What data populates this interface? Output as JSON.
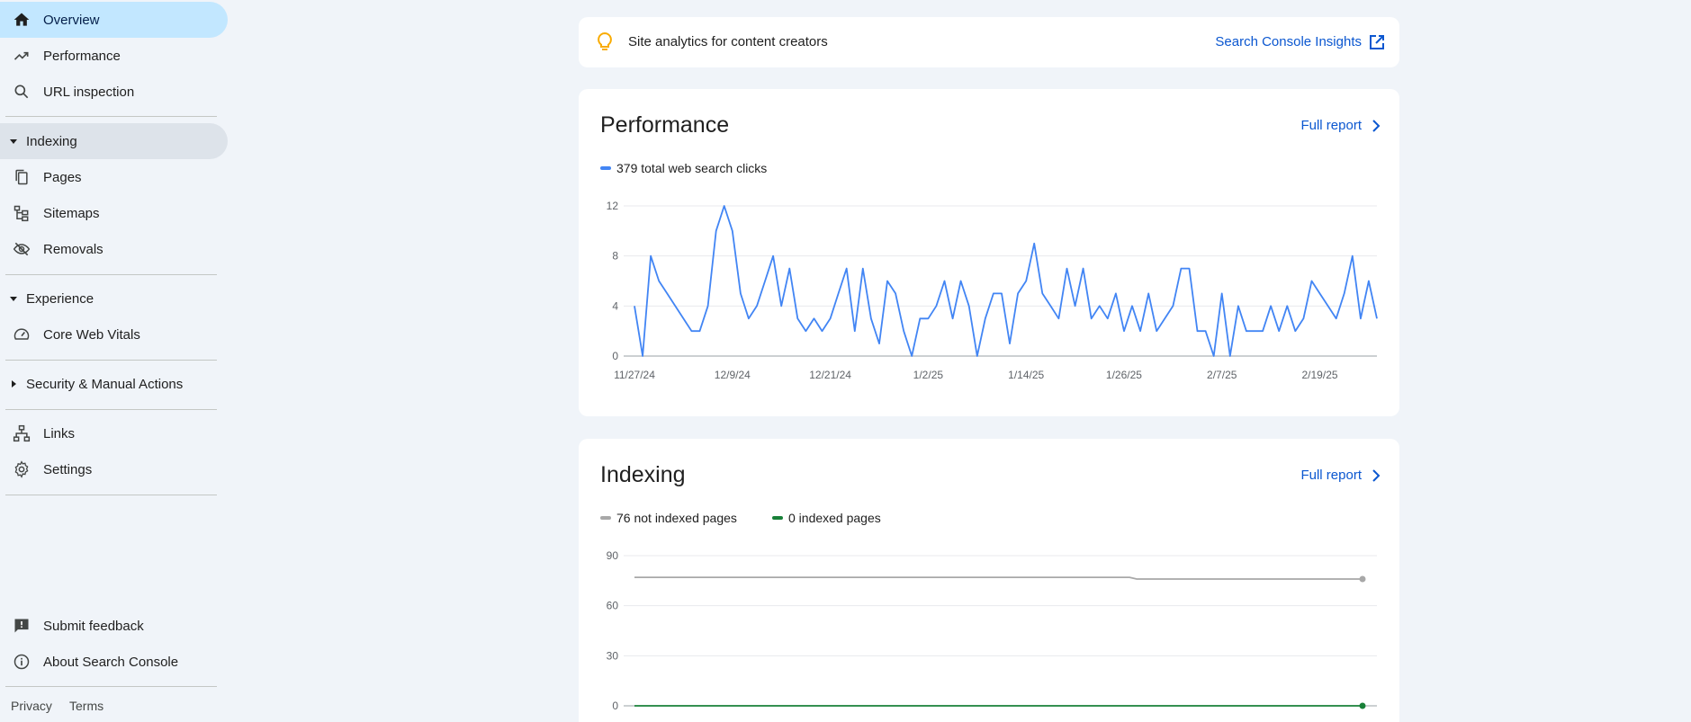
{
  "sidebar": {
    "overview": "Overview",
    "performance": "Performance",
    "url_inspection": "URL inspection",
    "indexing": "Indexing",
    "pages": "Pages",
    "sitemaps": "Sitemaps",
    "removals": "Removals",
    "experience": "Experience",
    "core_web_vitals": "Core Web Vitals",
    "security": "Security & Manual Actions",
    "links": "Links",
    "settings": "Settings",
    "submit_feedback": "Submit feedback",
    "about": "About Search Console",
    "privacy": "Privacy",
    "terms": "Terms"
  },
  "banner": {
    "text": "Site analytics for content creators",
    "link": "Search Console Insights"
  },
  "colors": {
    "accent_blue": "#0b57d0",
    "line_blue": "#4285f4",
    "line_gray": "#a8a8a8",
    "line_green": "#188038",
    "active_nav": "#c2e7ff"
  },
  "performance": {
    "title": "Performance",
    "full_report": "Full report",
    "legend": "379 total web search clicks"
  },
  "indexing": {
    "title": "Indexing",
    "full_report": "Full report",
    "legend_not_indexed": "76 not indexed pages",
    "legend_indexed": "0 indexed pages"
  },
  "chart_data": [
    {
      "type": "line",
      "title": "",
      "xlabel": "",
      "ylabel": "",
      "ylim": [
        0,
        12
      ],
      "yticks": [
        0,
        4,
        8,
        12
      ],
      "xtick_labels": [
        "11/27/24",
        "12/9/24",
        "12/21/24",
        "1/2/25",
        "1/14/25",
        "1/26/25",
        "2/7/25",
        "2/19/25"
      ],
      "grid": true,
      "series": [
        {
          "name": "379 total web search clicks",
          "color": "#4285f4",
          "values": [
            4,
            0,
            8,
            6,
            5,
            4,
            3,
            2,
            2,
            4,
            10,
            12,
            10,
            5,
            3,
            4,
            6,
            8,
            4,
            7,
            3,
            2,
            3,
            2,
            3,
            5,
            7,
            2,
            7,
            3,
            1,
            6,
            5,
            2,
            0,
            3,
            3,
            4,
            6,
            3,
            6,
            4,
            0,
            3,
            5,
            5,
            1,
            5,
            6,
            9,
            5,
            4,
            3,
            7,
            4,
            7,
            3,
            4,
            3,
            5,
            2,
            4,
            2,
            5,
            2,
            3,
            4,
            7,
            7,
            2,
            2,
            0,
            5,
            0,
            4,
            2,
            2,
            2,
            4,
            2,
            4,
            2,
            3,
            6,
            5,
            4,
            3,
            5,
            8,
            3,
            6,
            3
          ]
        }
      ]
    },
    {
      "type": "line",
      "title": "",
      "xlabel": "",
      "ylabel": "",
      "ylim": [
        0,
        90
      ],
      "yticks": [
        0,
        30,
        60,
        90
      ],
      "grid": true,
      "series": [
        {
          "name": "76 not indexed pages",
          "color": "#a8a8a8",
          "start": 77,
          "end": 76
        },
        {
          "name": "0 indexed pages",
          "color": "#188038",
          "start": 0,
          "end": 0
        }
      ]
    }
  ]
}
